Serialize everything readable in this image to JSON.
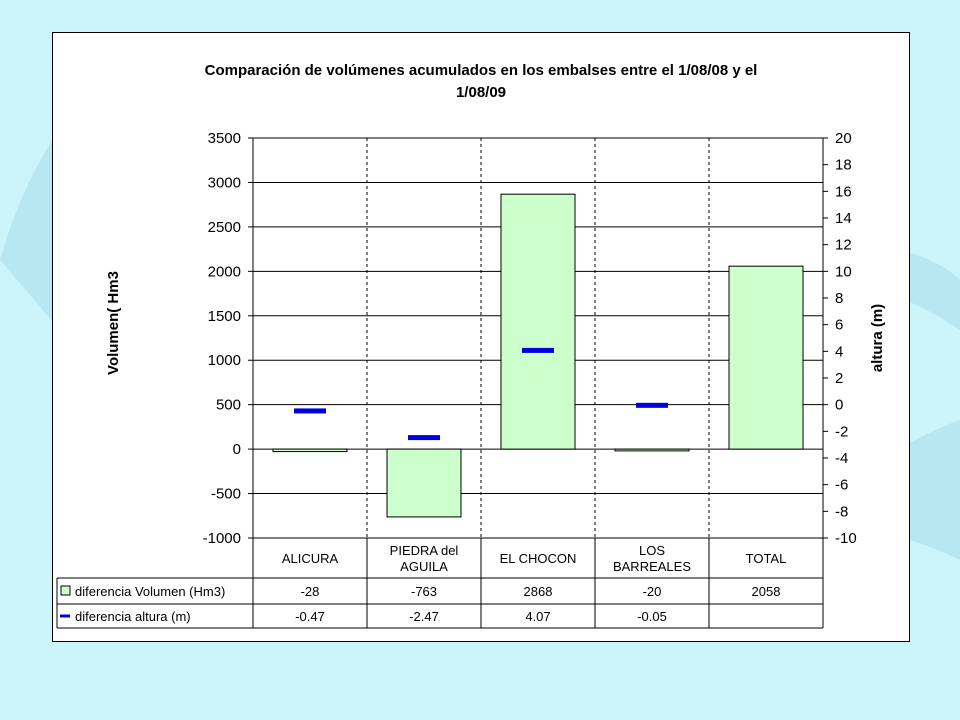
{
  "chart_data": {
    "type": "bar",
    "title_lines": [
      "Comparación de volúmenes acumulados en los embalses entre el 1/08/08 y el",
      "1/08/09"
    ],
    "categories": [
      [
        "ALICURA"
      ],
      [
        "PIEDRA del",
        "AGUILA"
      ],
      [
        "EL CHOCON"
      ],
      [
        "LOS",
        "BARREALES"
      ],
      [
        "TOTAL"
      ]
    ],
    "ylabel": "Volumen( Hm3",
    "y2label": "altura (m)",
    "ylim": [
      -1000,
      3500
    ],
    "y2lim": [
      -10,
      20
    ],
    "yticks": [
      -1000,
      -500,
      0,
      500,
      1000,
      1500,
      2000,
      2500,
      3000,
      3500
    ],
    "y2ticks": [
      -10,
      -8,
      -6,
      -4,
      -2,
      0,
      2,
      4,
      6,
      8,
      10,
      12,
      14,
      16,
      18,
      20
    ],
    "series": [
      {
        "name": "diferencia Volumen (Hm3)",
        "kind": "bar",
        "axis": "left",
        "color": "#ccffcc",
        "values": [
          -28,
          -763,
          2868,
          -20,
          2058
        ],
        "labels": [
          "-28",
          "-763",
          "2868",
          "-20",
          "2058"
        ]
      },
      {
        "name": "diferencia altura (m)",
        "kind": "marker",
        "axis": "right",
        "color": "#0000dd",
        "values": [
          -0.47,
          -2.47,
          4.07,
          -0.05,
          null
        ],
        "labels": [
          "-0.47",
          "-2.47",
          "4.07",
          "-0.05",
          ""
        ]
      }
    ],
    "grid": "vertical dashed",
    "legend": "data table"
  }
}
